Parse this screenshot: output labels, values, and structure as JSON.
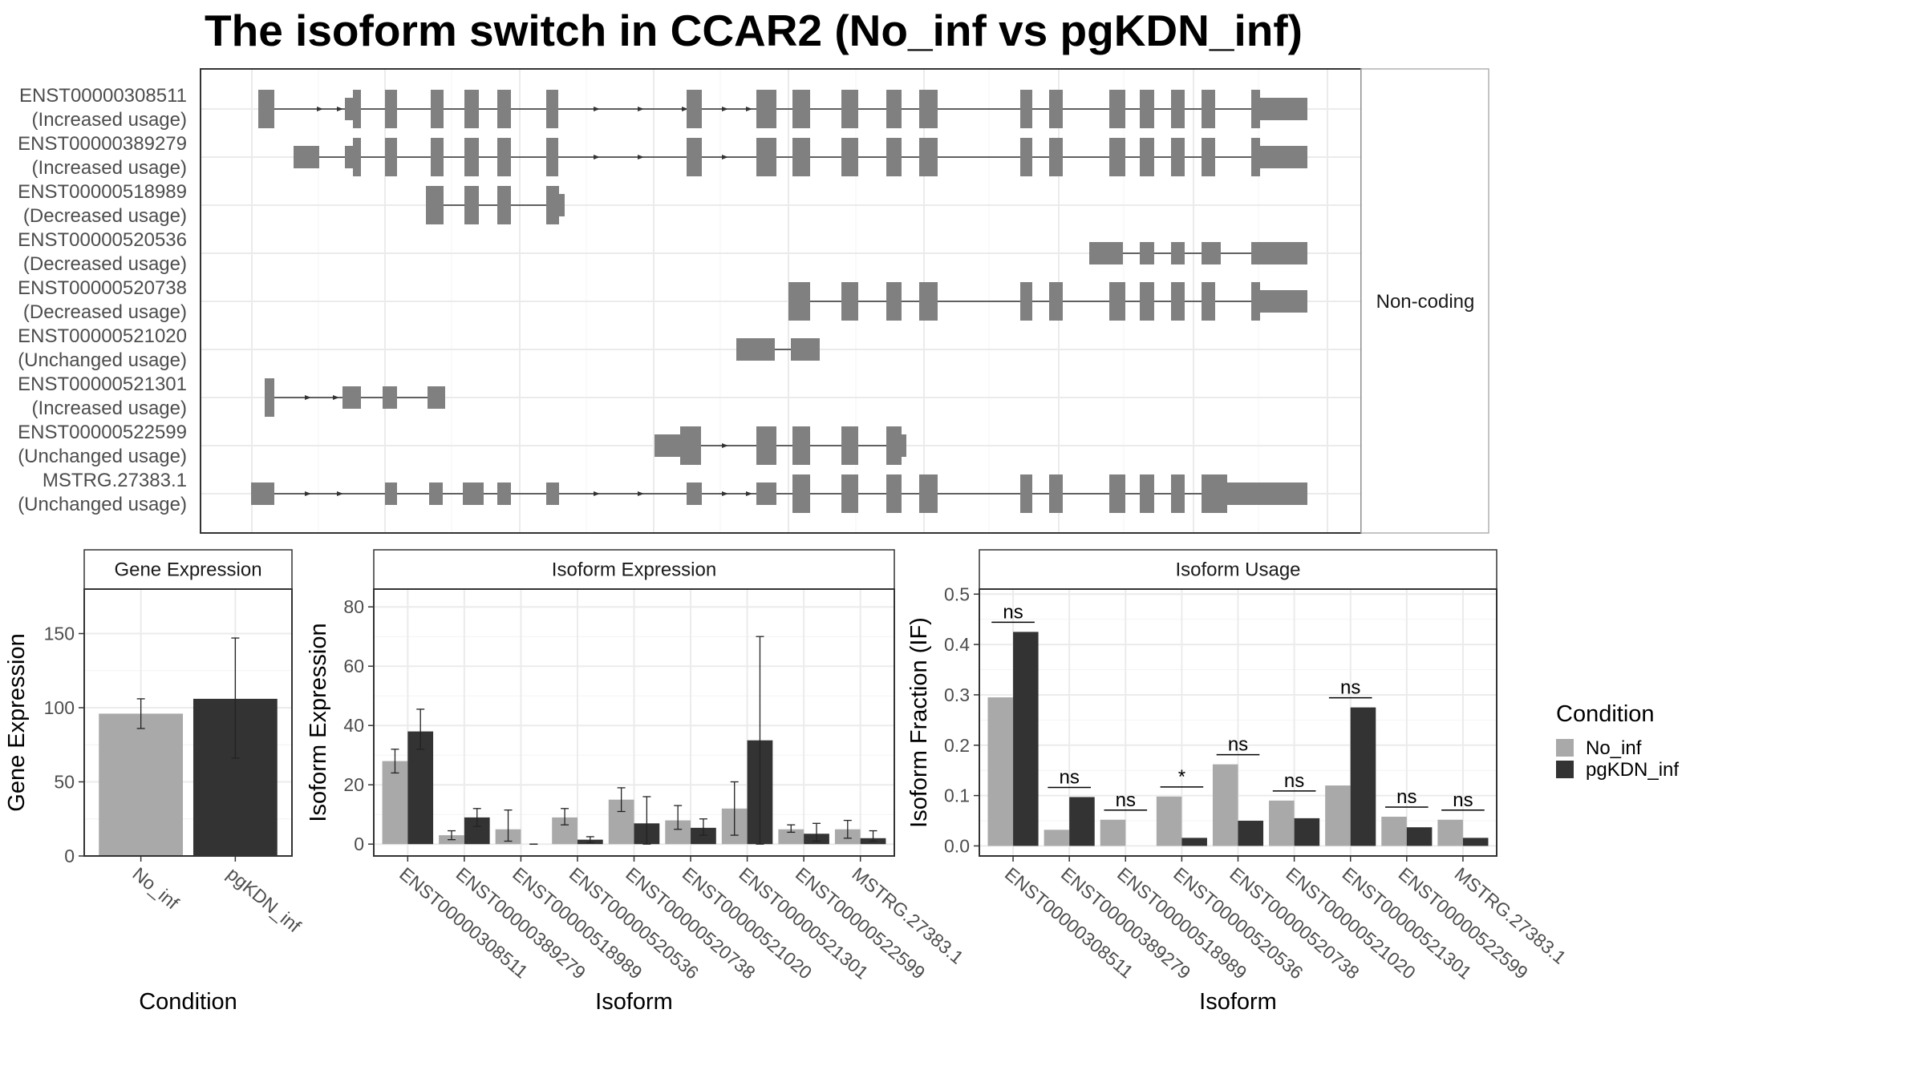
{
  "title": "The isoform switch in CCAR2 (No_inf vs pgKDN_inf)",
  "colors": {
    "no_inf": "#a9a9a9",
    "pgkdn_inf": "#333333",
    "exon": "#808080",
    "grid": "#ebebeb",
    "panel_border": "#333333",
    "strip_fill": "#ffffff"
  },
  "structure_panel": {
    "side_strip_label": "Non-coding",
    "isoforms": [
      {
        "id": "ENST00000308511",
        "usage": "(Increased usage)"
      },
      {
        "id": "ENST00000389279",
        "usage": "(Increased usage)"
      },
      {
        "id": "ENST00000518989",
        "usage": "(Decreased usage)"
      },
      {
        "id": "ENST00000520536",
        "usage": "(Decreased usage)"
      },
      {
        "id": "ENST00000520738",
        "usage": "(Decreased usage)"
      },
      {
        "id": "ENST00000521020",
        "usage": "(Unchanged usage)"
      },
      {
        "id": "ENST00000521301",
        "usage": "(Increased usage)"
      },
      {
        "id": "ENST00000522599",
        "usage": "(Unchanged usage)"
      },
      {
        "id": "MSTRG.27383.1",
        "usage": "(Unchanged usage)"
      }
    ]
  },
  "legend": {
    "title": "Condition",
    "items": [
      {
        "label": "No_inf",
        "color": "#a9a9a9"
      },
      {
        "label": "pgKDN_inf",
        "color": "#333333"
      }
    ]
  },
  "chart_data": [
    {
      "type": "bar",
      "strip": "Gene Expression",
      "xlabel": "Condition",
      "ylabel": "Gene Expression",
      "ylim": [
        0,
        180
      ],
      "yticks": [
        0,
        50,
        100,
        150
      ],
      "categories": [
        "No_inf",
        "pgKDN_inf"
      ],
      "values": [
        96,
        106
      ],
      "error_low": [
        86,
        66
      ],
      "error_high": [
        106,
        147
      ]
    },
    {
      "type": "bar",
      "strip": "Isoform Expression",
      "xlabel": "Isoform",
      "ylabel": "Isoform Expression",
      "ylim": [
        -4,
        86
      ],
      "yticks": [
        0,
        20,
        40,
        60,
        80
      ],
      "categories": [
        "ENST00000308511",
        "ENST00000389279",
        "ENST00000518989",
        "ENST00000520536",
        "ENST00000520738",
        "ENST00000521020",
        "ENST00000521301",
        "ENST00000522599",
        "MSTRG.27383.1"
      ],
      "series": [
        {
          "name": "No_inf",
          "values": [
            28,
            3,
            5,
            9,
            15,
            8,
            12,
            5,
            5
          ],
          "error_low": [
            24,
            1.5,
            1,
            6.5,
            11,
            5,
            3,
            4,
            2
          ],
          "error_high": [
            32,
            4.5,
            11.5,
            12,
            19,
            13,
            21,
            6.5,
            8
          ]
        },
        {
          "name": "pgKDN_inf",
          "values": [
            38,
            9,
            0,
            1.5,
            7,
            5.5,
            35,
            3.5,
            2
          ],
          "error_low": [
            32,
            6,
            0,
            0.5,
            0,
            3,
            0,
            1,
            1
          ],
          "error_high": [
            45.5,
            12,
            0,
            2.5,
            16,
            8.5,
            70,
            7,
            4.5
          ]
        }
      ]
    },
    {
      "type": "bar",
      "strip": "Isoform Usage",
      "xlabel": "Isoform",
      "ylabel": "Isoform Fraction (IF)",
      "ylim": [
        -0.02,
        0.51
      ],
      "yticks": [
        0.0,
        0.1,
        0.2,
        0.3,
        0.4,
        0.5
      ],
      "ytick_labels": [
        "0.0",
        "0.1",
        "0.2",
        "0.3",
        "0.4",
        "0.5"
      ],
      "categories": [
        "ENST00000308511",
        "ENST00000389279",
        "ENST00000518989",
        "ENST00000520536",
        "ENST00000520738",
        "ENST00000521020",
        "ENST00000521301",
        "ENST00000522599",
        "MSTRG.27383.1"
      ],
      "series": [
        {
          "name": "No_inf",
          "values": [
            0.295,
            0.032,
            0.052,
            0.098,
            0.162,
            0.09,
            0.12,
            0.058,
            0.052
          ]
        },
        {
          "name": "pgKDN_inf",
          "values": [
            0.425,
            0.097,
            0.0,
            0.016,
            0.05,
            0.055,
            0.275,
            0.037,
            0.016
          ]
        }
      ],
      "significance": [
        "ns",
        "ns",
        "ns",
        "*",
        "ns",
        "ns",
        "ns",
        "ns",
        "ns"
      ]
    }
  ]
}
